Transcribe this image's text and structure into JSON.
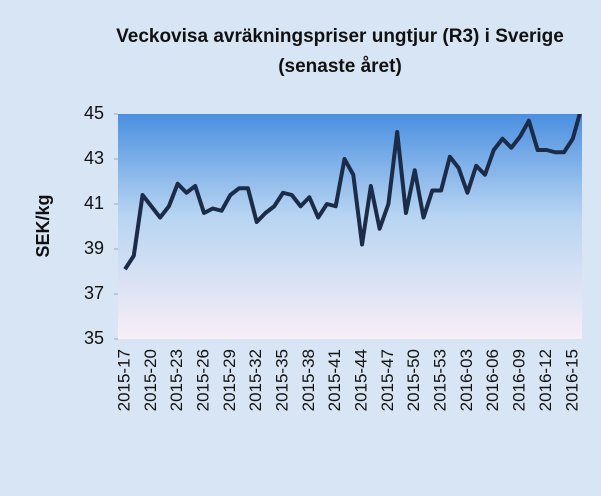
{
  "chart_data": {
    "type": "line",
    "title": "Veckovisa avräkningspriser ungtjur (R3) i Sverige (senaste året)",
    "y_label": "SEK/kg",
    "categories": [
      "2015-17",
      null,
      null,
      "2015-20",
      null,
      null,
      "2015-23",
      null,
      null,
      "2015-26",
      null,
      null,
      "2015-29",
      null,
      null,
      "2015-32",
      null,
      null,
      "2015-35",
      null,
      null,
      "2015-38",
      null,
      null,
      "2015-41",
      null,
      null,
      "2015-44",
      null,
      null,
      "2015-47",
      null,
      null,
      "2015-50",
      null,
      null,
      "2015-53",
      null,
      null,
      "2016-03",
      null,
      null,
      "2016-06",
      null,
      null,
      "2016-09",
      null,
      null,
      "2016-12",
      null,
      null,
      "2016-15",
      null
    ],
    "series": [
      {
        "name": "SEK/kg",
        "color": "#1c2b48",
        "values": [
          38.1,
          38.7,
          41.4,
          40.9,
          40.4,
          40.9,
          41.9,
          41.5,
          41.8,
          40.6,
          40.8,
          40.7,
          41.4,
          41.7,
          41.7,
          40.2,
          40.6,
          40.9,
          41.5,
          41.4,
          40.9,
          41.3,
          40.4,
          41.0,
          40.9,
          43.0,
          42.3,
          39.2,
          41.8,
          39.9,
          41.0,
          44.2,
          40.6,
          42.5,
          40.4,
          41.6,
          41.6,
          43.1,
          42.6,
          41.5,
          42.7,
          42.3,
          43.4,
          43.9,
          43.5,
          44.0,
          44.7,
          43.4,
          43.4,
          43.3,
          43.3,
          43.9,
          45.3
        ]
      }
    ],
    "ylim": [
      35,
      45
    ],
    "yticks": [
      35,
      37,
      39,
      41,
      43,
      45
    ]
  }
}
